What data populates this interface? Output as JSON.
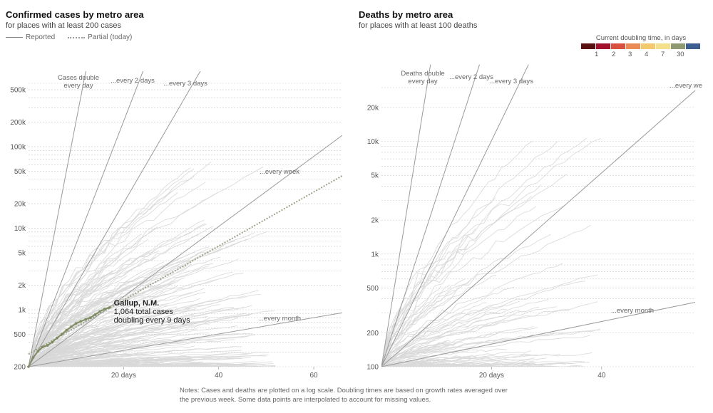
{
  "left": {
    "title": "Confirmed cases by metro area",
    "subtitle": "for places with at least 200 cases",
    "legend_reported": "Reported",
    "legend_partial": "Partial (today)"
  },
  "right": {
    "title": "Deaths by metro area",
    "subtitle": "for places with at least 100 deaths"
  },
  "scale": {
    "title": "Current doubling time, in days",
    "colors": [
      "#5a0f12",
      "#a3122d",
      "#d9503f",
      "#ec8a56",
      "#f2c96c",
      "#f4e08a",
      "#8f9a72",
      "#3d5f8f"
    ],
    "labels": [
      "1",
      "2",
      "3",
      "4",
      "7",
      "30"
    ]
  },
  "notes": "Notes: Cases and deaths are plotted on a log scale. Doubling times are based on growth rates averaged over the previous week. Some data points are interpolated to account for missing values.",
  "chart_data": [
    {
      "type": "line",
      "title": "Confirmed cases by metro area",
      "subtitle": "for places with at least 200 cases",
      "yscale": "log",
      "ylim": [
        200,
        600000
      ],
      "xlim": [
        0,
        66
      ],
      "xticks": [
        20,
        40,
        60
      ],
      "xtick_labels": [
        "20 days",
        "40",
        "60"
      ],
      "yticks": [
        200,
        500,
        1000,
        2000,
        5000,
        10000,
        20000,
        50000,
        100000,
        200000,
        500000
      ],
      "ytick_labels": [
        "200",
        "500",
        "1k",
        "2k",
        "5k",
        "10k",
        "20k",
        "50k",
        "100k",
        "200k",
        "500k"
      ],
      "reference_lines": [
        {
          "label": "Cases double every day",
          "doubling_days": 1
        },
        {
          "label": "...every 2 days",
          "doubling_days": 2
        },
        {
          "label": "...every 3 days",
          "doubling_days": 3
        },
        {
          "label": "...every week",
          "doubling_days": 7
        },
        {
          "label": "...every month",
          "doubling_days": 30
        }
      ],
      "highlight": {
        "name": "Gallup, N.M.",
        "line1": "1,064 total cases",
        "line2": "doubling every 9 days",
        "x": [
          0,
          1,
          2,
          3,
          4,
          5,
          6,
          7,
          8,
          9,
          10,
          11,
          12,
          13,
          14,
          15,
          16,
          17
        ],
        "y": [
          200,
          260,
          310,
          350,
          365,
          400,
          450,
          500,
          560,
          620,
          680,
          720,
          760,
          800,
          870,
          950,
          1020,
          1064
        ],
        "projection_x": [
          0,
          66
        ],
        "projection_y": [
          285,
          44000
        ]
      }
    },
    {
      "type": "line",
      "title": "Deaths by metro area",
      "subtitle": "for places with at least 100 deaths",
      "yscale": "log",
      "ylim": [
        100,
        30000
      ],
      "xlim": [
        0,
        57
      ],
      "xticks": [
        20,
        40
      ],
      "xtick_labels": [
        "20 days",
        "40"
      ],
      "yticks": [
        100,
        200,
        500,
        1000,
        2000,
        5000,
        10000,
        20000
      ],
      "ytick_labels": [
        "100",
        "200",
        "500",
        "1k",
        "2k",
        "5k",
        "10k",
        "20k"
      ],
      "reference_lines": [
        {
          "label": "Deaths double every day",
          "doubling_days": 1
        },
        {
          "label": "...every 2 days",
          "doubling_days": 2
        },
        {
          "label": "...every 3 days",
          "doubling_days": 3
        },
        {
          "label": "...every week",
          "doubling_days": 7
        },
        {
          "label": "...every month",
          "doubling_days": 30
        }
      ]
    }
  ]
}
